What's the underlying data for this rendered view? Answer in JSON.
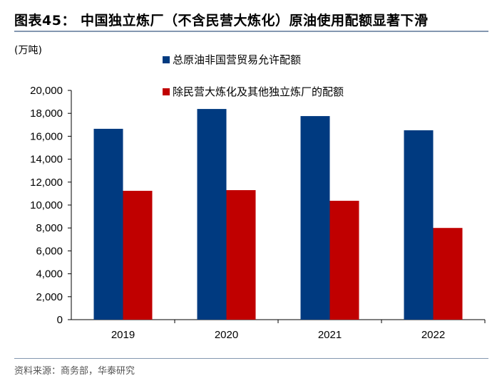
{
  "title": "图表45： 中国独立炼厂（不含民营大炼化）原油使用配额显著下滑",
  "unit": "(万吨)",
  "source": "资料来源：商务部，华泰研究",
  "chart_data": {
    "type": "bar",
    "categories": [
      "2019",
      "2020",
      "2021",
      "2022"
    ],
    "series": [
      {
        "name": "总原油非国营贸易允许配额",
        "color": "#003A80",
        "values": [
          16650,
          18380,
          17760,
          16520
        ]
      },
      {
        "name": "除民营大炼化及其他独立炼厂的配额",
        "color": "#C00000",
        "values": [
          11240,
          11300,
          10370,
          8000
        ]
      }
    ],
    "ylim": [
      0,
      20000
    ],
    "yticks": [
      "0",
      "2,000",
      "4,000",
      "6,000",
      "8,000",
      "10,000",
      "12,000",
      "14,000",
      "16,000",
      "18,000",
      "20,000"
    ],
    "grid": false,
    "legend": "top-center"
  }
}
